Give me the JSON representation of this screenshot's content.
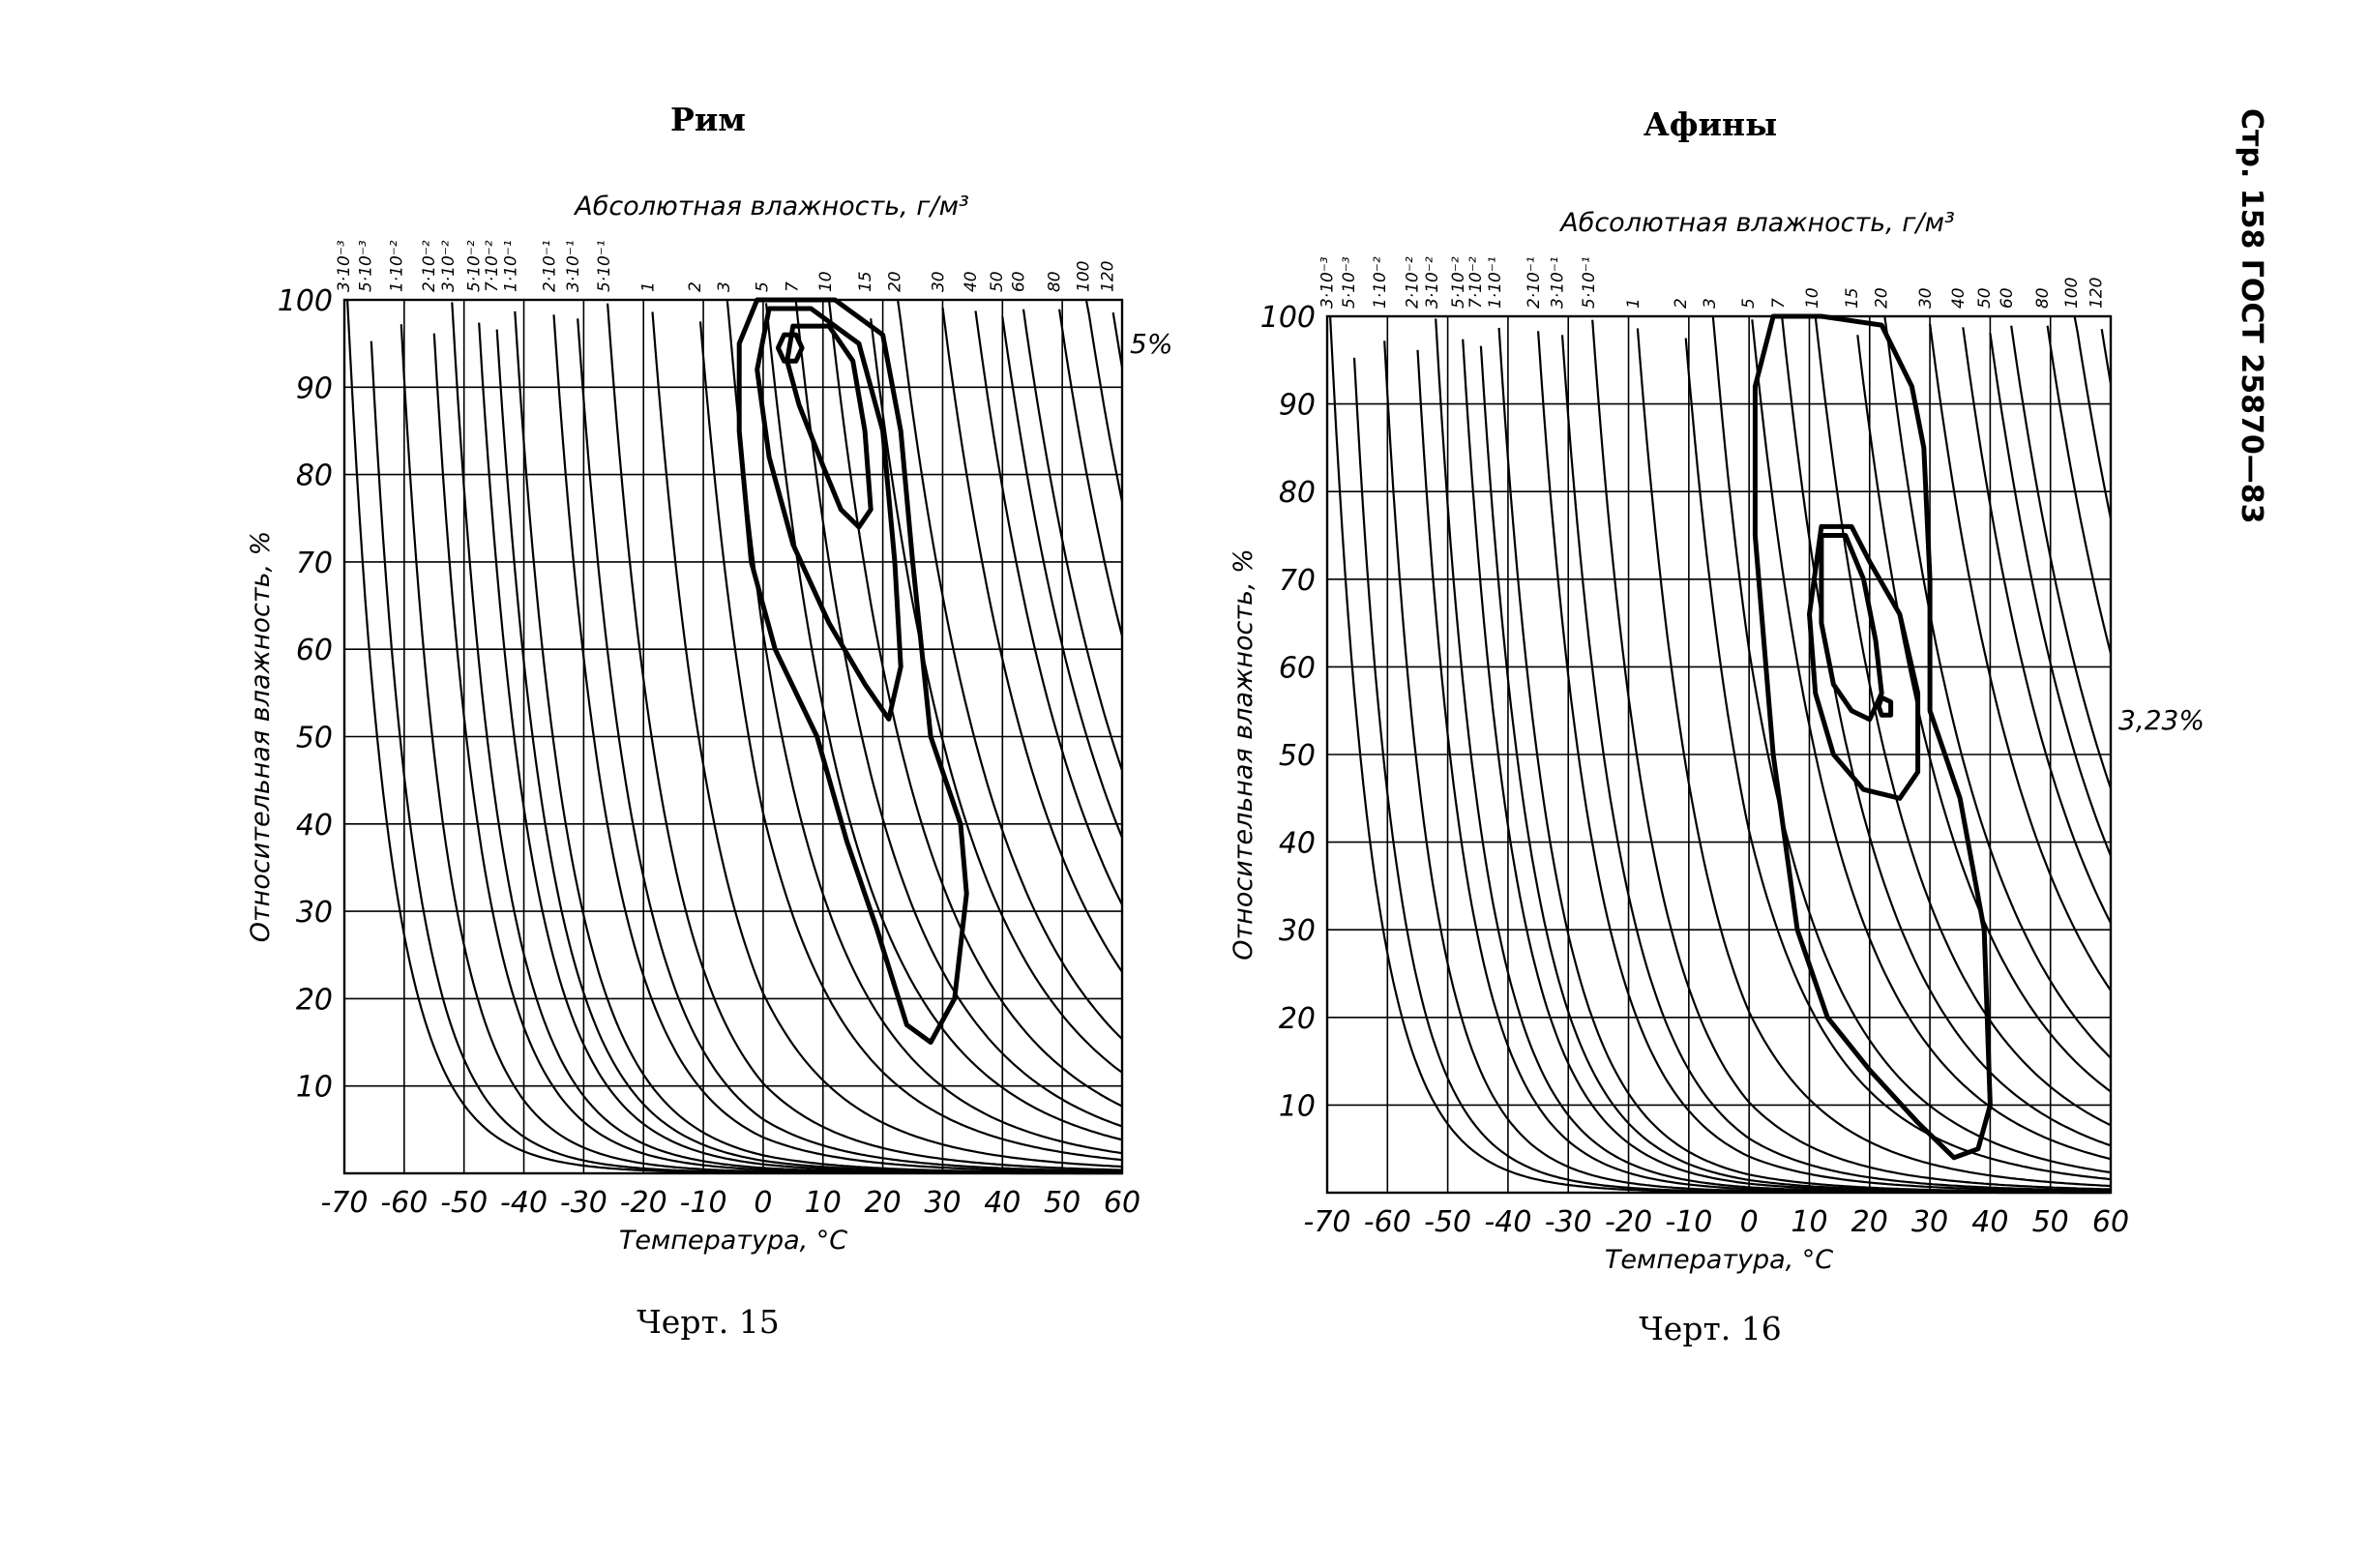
{
  "page_header": "Стр. 158 ГОСТ 25870—83",
  "chart_data": [
    {
      "type": "line",
      "title": "Рим",
      "caption": "Черт. 15",
      "xlabel": "Температура, °C",
      "ylabel": "Относительная влажность, %",
      "top_axis_label": "Абсолютная влажность, г/м³",
      "xlim": [
        -70,
        60
      ],
      "ylim": [
        0,
        100
      ],
      "x_ticks": [
        "-70",
        "-60",
        "-50",
        "-40",
        "-30",
        "-20",
        "-10",
        "0",
        "10",
        "20",
        "30",
        "40",
        "50",
        "60"
      ],
      "y_ticks": [
        "10",
        "20",
        "30",
        "40",
        "50",
        "60",
        "70",
        "80",
        "90",
        "100"
      ],
      "humidity_tick_labels": [
        "3·10⁻³",
        "5·10⁻³",
        "1·10⁻²",
        "2·10⁻²",
        "3·10⁻²",
        "5·10⁻²",
        "7·10⁻²",
        "1·10⁻¹",
        "2·10⁻¹",
        "3·10⁻¹",
        "5·10⁻¹",
        "1",
        "2",
        "3",
        "5",
        "7",
        "10",
        "15",
        "20",
        "30",
        "40",
        "50",
        "60",
        "80",
        "100",
        "120"
      ],
      "humidity_values": [
        0.003,
        0.005,
        0.01,
        0.02,
        0.03,
        0.05,
        0.07,
        0.1,
        0.2,
        0.3,
        0.5,
        1,
        2,
        3,
        5,
        7,
        10,
        15,
        20,
        30,
        40,
        50,
        60,
        80,
        100,
        120
      ],
      "contour_annotation": "5%",
      "contours": [
        {
          "points": [
            [
              -1,
              100
            ],
            [
              12,
              100
            ],
            [
              20,
              96
            ],
            [
              23,
              85
            ],
            [
              25,
              70
            ],
            [
              28,
              50
            ],
            [
              33,
              40
            ],
            [
              34,
              32
            ],
            [
              32,
              20
            ],
            [
              28,
              15
            ],
            [
              24,
              17
            ],
            [
              19,
              28
            ],
            [
              14,
              38
            ],
            [
              9,
              50
            ],
            [
              2,
              60
            ],
            [
              -2,
              70
            ],
            [
              -4,
              85
            ],
            [
              -4,
              95
            ],
            [
              -1,
              100
            ]
          ]
        },
        {
          "points": [
            [
              1,
              99
            ],
            [
              8,
              99
            ],
            [
              16,
              95
            ],
            [
              20,
              85
            ],
            [
              22,
              70
            ],
            [
              23,
              58
            ],
            [
              21,
              52
            ],
            [
              17,
              56
            ],
            [
              11,
              63
            ],
            [
              5,
              72
            ],
            [
              1,
              82
            ],
            [
              -1,
              92
            ],
            [
              1,
              99
            ]
          ]
        },
        {
          "points": [
            [
              5,
              97
            ],
            [
              11,
              97
            ],
            [
              15,
              93
            ],
            [
              17,
              85
            ],
            [
              18,
              76
            ],
            [
              16,
              74
            ],
            [
              13,
              76
            ],
            [
              10,
              81
            ],
            [
              6,
              88
            ],
            [
              4,
              93
            ],
            [
              5,
              97
            ]
          ]
        },
        {
          "points": [
            [
              3.5,
              96
            ],
            [
              5.5,
              96
            ],
            [
              6.5,
              94.5
            ],
            [
              5.5,
              93
            ],
            [
              3.5,
              93
            ],
            [
              2.5,
              94.5
            ],
            [
              3.5,
              96
            ]
          ]
        }
      ]
    },
    {
      "type": "line",
      "title": "Афины",
      "caption": "Черт. 16",
      "xlabel": "Температура, °C",
      "ylabel": "Относительная влажность, %",
      "top_axis_label": "Абсолютная влажность, г/м³",
      "xlim": [
        -70,
        60
      ],
      "ylim": [
        0,
        100
      ],
      "x_ticks": [
        "-70",
        "-60",
        "-50",
        "-40",
        "-30",
        "-20",
        "-10",
        "0",
        "10",
        "20",
        "30",
        "40",
        "50",
        "60"
      ],
      "y_ticks": [
        "10",
        "20",
        "30",
        "40",
        "50",
        "60",
        "70",
        "80",
        "90",
        "100"
      ],
      "humidity_tick_labels": [
        "3·10⁻³",
        "5·10⁻³",
        "1·10⁻²",
        "2·10⁻²",
        "3·10⁻²",
        "5·10⁻²",
        "7·10⁻²",
        "1·10⁻¹",
        "2·10⁻¹",
        "3·10⁻¹",
        "5·10⁻¹",
        "1",
        "2",
        "3",
        "5",
        "7",
        "10",
        "15",
        "20",
        "30",
        "40",
        "50",
        "60",
        "80",
        "100",
        "120"
      ],
      "humidity_values": [
        0.003,
        0.005,
        0.01,
        0.02,
        0.03,
        0.05,
        0.07,
        0.1,
        0.2,
        0.3,
        0.5,
        1,
        2,
        3,
        5,
        7,
        10,
        15,
        20,
        30,
        40,
        50,
        60,
        80,
        100,
        120
      ],
      "contour_annotation": "3,23%",
      "contours": [
        {
          "points": [
            [
              4,
              100
            ],
            [
              12,
              100
            ],
            [
              22,
              99
            ],
            [
              27,
              92
            ],
            [
              29,
              85
            ],
            [
              30,
              70
            ],
            [
              30,
              55
            ],
            [
              35,
              45
            ],
            [
              39,
              30
            ],
            [
              40,
              10
            ],
            [
              38,
              5
            ],
            [
              34,
              4
            ],
            [
              28,
              8
            ],
            [
              20,
              14
            ],
            [
              13,
              20
            ],
            [
              8,
              30
            ],
            [
              4,
              50
            ],
            [
              1,
              75
            ],
            [
              1,
              92
            ],
            [
              4,
              100
            ]
          ]
        },
        {
          "points": [
            [
              12,
              76
            ],
            [
              17,
              76
            ],
            [
              20,
              72
            ],
            [
              25,
              66
            ],
            [
              28,
              57
            ],
            [
              28,
              48
            ],
            [
              25,
              45
            ],
            [
              19,
              46
            ],
            [
              14,
              50
            ],
            [
              11,
              57
            ],
            [
              10,
              66
            ],
            [
              12,
              76
            ]
          ]
        },
        {
          "points": [
            [
              12,
              75
            ],
            [
              16,
              75
            ],
            [
              19,
              70
            ],
            [
              21,
              63
            ],
            [
              22,
              57
            ],
            [
              20,
              54
            ],
            [
              17,
              55
            ],
            [
              14,
              58
            ],
            [
              12,
              65
            ],
            [
              12,
              75
            ]
          ]
        },
        {
          "points": [
            [
              22,
              56.5
            ],
            [
              23.5,
              56
            ],
            [
              23.5,
              54.5
            ],
            [
              22,
              54.5
            ],
            [
              21.5,
              55.5
            ],
            [
              22,
              56.5
            ]
          ]
        }
      ]
    }
  ]
}
